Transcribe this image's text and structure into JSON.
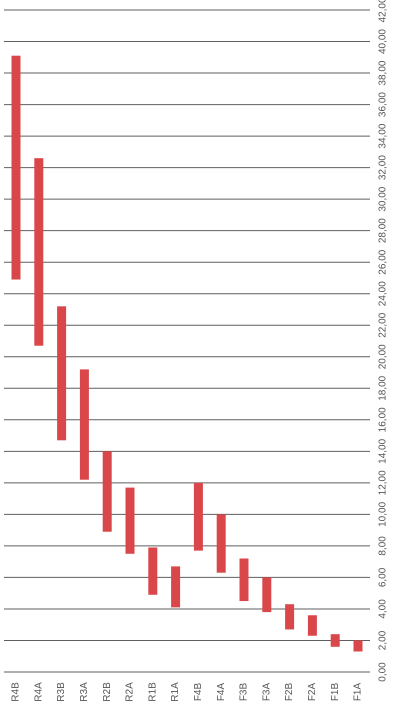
{
  "chart_data": {
    "type": "bar",
    "subtype": "floating-range",
    "orientation": "rotated-90",
    "categories": [
      "R4B",
      "R4A",
      "R3B",
      "R3A",
      "R2B",
      "R2A",
      "R1B",
      "R1A",
      "F4B",
      "F4A",
      "F3B",
      "F3A",
      "F2B",
      "F2A",
      "F1B",
      "F1A"
    ],
    "series": [
      {
        "low": [
          24.9,
          20.7,
          14.7,
          12.2,
          8.9,
          7.5,
          4.9,
          4.1,
          7.7,
          6.3,
          4.5,
          3.8,
          2.7,
          2.3,
          1.6,
          1.3
        ],
        "high": [
          39.1,
          32.6,
          23.2,
          19.2,
          14.0,
          11.7,
          7.9,
          6.7,
          12.0,
          10.0,
          7.2,
          6.0,
          4.3,
          3.6,
          2.4,
          2.0
        ]
      }
    ],
    "value_axis": {
      "min": 0,
      "max": 42,
      "major_unit": 2,
      "tick_labels": [
        "0,00",
        "2,00",
        "4,00",
        "6,00",
        "8,00",
        "10,00",
        "12,00",
        "14,00",
        "16,00",
        "18,00",
        "20,00",
        "22,00",
        "24,00",
        "26,00",
        "28,00",
        "30,00",
        "32,00",
        "34,00",
        "36,00",
        "38,00",
        "40,00",
        "42,00"
      ]
    },
    "grid": true,
    "legend": "none",
    "colors": {
      "bar": "#d9474a",
      "grid": "#5f5f5f",
      "text": "#555555"
    }
  }
}
